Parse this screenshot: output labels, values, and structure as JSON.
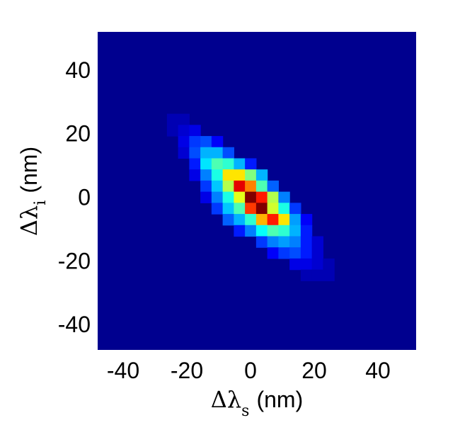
{
  "chart_data": {
    "type": "heatmap",
    "title": "",
    "xlabel": {
      "symbol": "Δλ",
      "subscript": "s",
      "unit": "(nm)"
    },
    "ylabel": {
      "symbol": "Δλ",
      "subscript": "i",
      "unit": "(nm)"
    },
    "xlim": [
      -48,
      52
    ],
    "ylim": [
      -48,
      52
    ],
    "xticks": [
      "-40",
      "-20",
      "0",
      "20",
      "40"
    ],
    "yticks": [
      "40",
      "20",
      "0",
      "-20",
      "-40"
    ],
    "xtick_values": [
      -40,
      -20,
      0,
      20,
      40
    ],
    "ytick_values": [
      40,
      20,
      0,
      -20,
      -40
    ],
    "colormap": "jet",
    "color_range": [
      0,
      1
    ],
    "background_value": 0,
    "bin_size_nm": 3.5,
    "bin_origin_nm": 0,
    "grid": false,
    "legend": "none",
    "cells": [
      {
        "x": -24.5,
        "y": 24.5,
        "v": 0.05
      },
      {
        "x": -21.0,
        "y": 24.5,
        "v": 0.05
      },
      {
        "x": -24.5,
        "y": 21.0,
        "v": 0.05
      },
      {
        "x": -21.0,
        "y": 21.0,
        "v": 0.08
      },
      {
        "x": -17.5,
        "y": 21.0,
        "v": 0.1
      },
      {
        "x": -21.0,
        "y": 17.5,
        "v": 0.1
      },
      {
        "x": -17.5,
        "y": 17.5,
        "v": 0.18
      },
      {
        "x": -14.0,
        "y": 17.5,
        "v": 0.2
      },
      {
        "x": -10.5,
        "y": 17.5,
        "v": 0.12
      },
      {
        "x": -21.0,
        "y": 14.0,
        "v": 0.08
      },
      {
        "x": -17.5,
        "y": 14.0,
        "v": 0.2
      },
      {
        "x": -14.0,
        "y": 14.0,
        "v": 0.3
      },
      {
        "x": -10.5,
        "y": 14.0,
        "v": 0.3
      },
      {
        "x": -7.0,
        "y": 14.0,
        "v": 0.2
      },
      {
        "x": -17.5,
        "y": 10.5,
        "v": 0.15
      },
      {
        "x": -14.0,
        "y": 10.5,
        "v": 0.35
      },
      {
        "x": -10.5,
        "y": 10.5,
        "v": 0.45
      },
      {
        "x": -7.0,
        "y": 10.5,
        "v": 0.42
      },
      {
        "x": -3.5,
        "y": 10.5,
        "v": 0.3
      },
      {
        "x": 0.0,
        "y": 10.5,
        "v": 0.15
      },
      {
        "x": -17.5,
        "y": 7.0,
        "v": 0.1
      },
      {
        "x": -14.0,
        "y": 7.0,
        "v": 0.25
      },
      {
        "x": -10.5,
        "y": 7.0,
        "v": 0.4
      },
      {
        "x": -7.0,
        "y": 7.0,
        "v": 0.65
      },
      {
        "x": -3.5,
        "y": 7.0,
        "v": 0.65
      },
      {
        "x": 0.0,
        "y": 7.0,
        "v": 0.5
      },
      {
        "x": 3.5,
        "y": 7.0,
        "v": 0.3
      },
      {
        "x": -14.0,
        "y": 3.5,
        "v": 0.18
      },
      {
        "x": -10.5,
        "y": 3.5,
        "v": 0.32
      },
      {
        "x": -7.0,
        "y": 3.5,
        "v": 0.55
      },
      {
        "x": -3.5,
        "y": 3.5,
        "v": 0.9
      },
      {
        "x": 0.0,
        "y": 3.5,
        "v": 0.75
      },
      {
        "x": 3.5,
        "y": 3.5,
        "v": 0.45
      },
      {
        "x": 7.0,
        "y": 3.5,
        "v": 0.22
      },
      {
        "x": -14.0,
        "y": 0.0,
        "v": 0.1
      },
      {
        "x": -10.5,
        "y": 0.0,
        "v": 0.25
      },
      {
        "x": -7.0,
        "y": 0.0,
        "v": 0.4
      },
      {
        "x": -3.5,
        "y": 0.0,
        "v": 0.6
      },
      {
        "x": 0.0,
        "y": 0.0,
        "v": 1.0
      },
      {
        "x": 3.5,
        "y": 0.0,
        "v": 0.85
      },
      {
        "x": 7.0,
        "y": 0.0,
        "v": 0.55
      },
      {
        "x": 10.5,
        "y": 0.0,
        "v": 0.25
      },
      {
        "x": -10.5,
        "y": -3.5,
        "v": 0.18
      },
      {
        "x": -7.0,
        "y": -3.5,
        "v": 0.32
      },
      {
        "x": -3.5,
        "y": -3.5,
        "v": 0.45
      },
      {
        "x": 0.0,
        "y": -3.5,
        "v": 0.82
      },
      {
        "x": 3.5,
        "y": -3.5,
        "v": 1.0
      },
      {
        "x": 7.0,
        "y": -3.5,
        "v": 0.58
      },
      {
        "x": 10.5,
        "y": -3.5,
        "v": 0.4
      },
      {
        "x": 14.0,
        "y": -3.5,
        "v": 0.18
      },
      {
        "x": -7.0,
        "y": -7.0,
        "v": 0.22
      },
      {
        "x": -3.5,
        "y": -7.0,
        "v": 0.3
      },
      {
        "x": 0.0,
        "y": -7.0,
        "v": 0.42
      },
      {
        "x": 3.5,
        "y": -7.0,
        "v": 0.7
      },
      {
        "x": 7.0,
        "y": -7.0,
        "v": 0.85
      },
      {
        "x": 10.5,
        "y": -7.0,
        "v": 0.65
      },
      {
        "x": 14.0,
        "y": -7.0,
        "v": 0.28
      },
      {
        "x": 17.5,
        "y": -7.0,
        "v": 0.12
      },
      {
        "x": -3.5,
        "y": -10.5,
        "v": 0.15
      },
      {
        "x": 0.0,
        "y": -10.5,
        "v": 0.25
      },
      {
        "x": 3.5,
        "y": -10.5,
        "v": 0.38
      },
      {
        "x": 7.0,
        "y": -10.5,
        "v": 0.45
      },
      {
        "x": 10.5,
        "y": -10.5,
        "v": 0.42
      },
      {
        "x": 14.0,
        "y": -10.5,
        "v": 0.3
      },
      {
        "x": 17.5,
        "y": -10.5,
        "v": 0.15
      },
      {
        "x": 3.5,
        "y": -14.0,
        "v": 0.18
      },
      {
        "x": 7.0,
        "y": -14.0,
        "v": 0.25
      },
      {
        "x": 10.5,
        "y": -14.0,
        "v": 0.28
      },
      {
        "x": 14.0,
        "y": -14.0,
        "v": 0.25
      },
      {
        "x": 17.5,
        "y": -14.0,
        "v": 0.15
      },
      {
        "x": 21.0,
        "y": -14.0,
        "v": 0.08
      },
      {
        "x": 7.0,
        "y": -17.5,
        "v": 0.12
      },
      {
        "x": 10.5,
        "y": -17.5,
        "v": 0.18
      },
      {
        "x": 14.0,
        "y": -17.5,
        "v": 0.2
      },
      {
        "x": 17.5,
        "y": -17.5,
        "v": 0.15
      },
      {
        "x": 21.0,
        "y": -17.5,
        "v": 0.08
      },
      {
        "x": 14.0,
        "y": -21.0,
        "v": 0.1
      },
      {
        "x": 17.5,
        "y": -21.0,
        "v": 0.1
      },
      {
        "x": 21.0,
        "y": -21.0,
        "v": 0.08
      },
      {
        "x": 24.5,
        "y": -21.0,
        "v": 0.05
      },
      {
        "x": 17.5,
        "y": -24.5,
        "v": 0.05
      },
      {
        "x": 21.0,
        "y": -24.5,
        "v": 0.05
      },
      {
        "x": 24.5,
        "y": -24.5,
        "v": 0.05
      }
    ]
  }
}
